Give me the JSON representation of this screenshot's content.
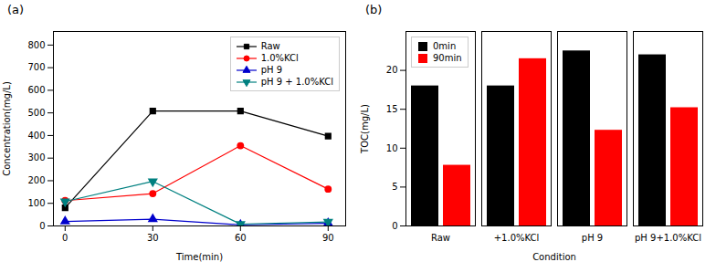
{
  "chart_data": [
    {
      "type": "line",
      "title": "(a)",
      "xlabel": "Time(min)",
      "ylabel": "Concentration(mg/L)",
      "x": [
        0,
        30,
        60,
        90
      ],
      "series": [
        {
          "name": "Raw",
          "color": "#000000",
          "marker": "square",
          "line_style": "solid",
          "values": [
            80,
            508,
            508,
            397
          ]
        },
        {
          "name": "1.0%KCl",
          "color": "#ff0000",
          "marker": "circle",
          "line_style": "solid",
          "values": [
            112,
            143,
            355,
            163
          ]
        },
        {
          "name": "pH 9",
          "color": "#0000cc",
          "marker": "triangle-up",
          "line_style": "solid",
          "values": [
            20,
            30,
            5,
            12
          ]
        },
        {
          "name": "pH 9 + 1.0%KCl",
          "color": "#008080",
          "marker": "triangle-down",
          "line_style": "solid",
          "values": [
            108,
            197,
            8,
            18
          ]
        }
      ],
      "xlim": [
        -4,
        96
      ],
      "xticks": [
        0,
        30,
        60,
        90
      ],
      "ylim": [
        0,
        860
      ],
      "yticks": [
        0,
        100,
        200,
        300,
        400,
        500,
        600,
        700,
        800
      ],
      "legend": "upper right",
      "grid": false
    },
    {
      "type": "bar",
      "title": "(b)",
      "xlabel": "Condition",
      "ylabel": "TOC(mg/L)",
      "categories": [
        "Raw",
        "+1.0%KCl",
        "pH 9",
        "pH 9+1.0%KCl"
      ],
      "series": [
        {
          "name": "0min",
          "color": "#000000",
          "values": [
            18.0,
            18.0,
            22.5,
            22.0
          ]
        },
        {
          "name": "90min",
          "color": "#ff0000",
          "values": [
            7.8,
            21.5,
            12.3,
            15.2
          ]
        }
      ],
      "ylim": [
        0,
        25
      ],
      "yticks": [
        0,
        5,
        10,
        15,
        20
      ],
      "legend": "upper left",
      "grid": false
    }
  ]
}
